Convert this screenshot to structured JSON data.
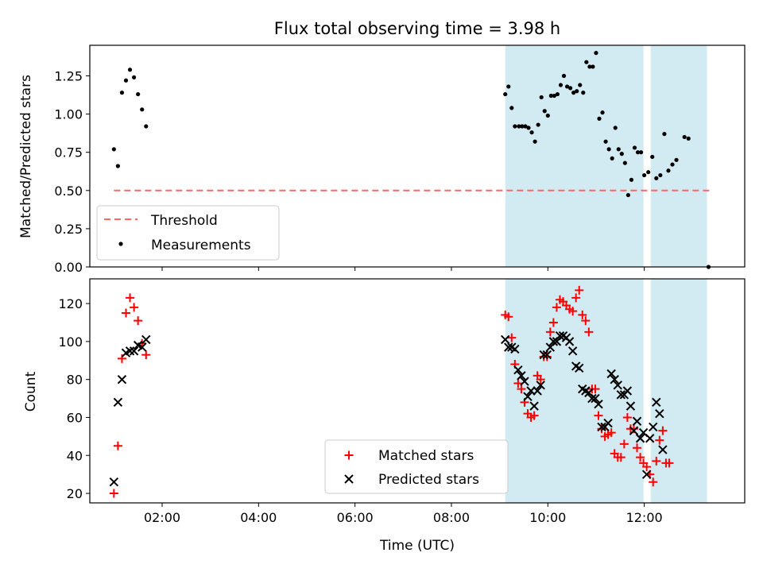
{
  "title": "Flux total observing time = 3.98 h",
  "xlabel": "Time (UTC)",
  "chart_data": [
    {
      "type": "scatter",
      "panel": "top",
      "ylabel": "Matched/Predicted stars",
      "xlim": [
        "00:30",
        "14:05"
      ],
      "ylim": [
        0,
        1.45
      ],
      "yticks": [
        0.0,
        0.25,
        0.5,
        0.75,
        1.0,
        1.25
      ],
      "ytick_labels": [
        "0.00",
        "0.25",
        "0.50",
        "0.75",
        "1.00",
        "1.25"
      ],
      "xticks": [
        "02:00",
        "04:00",
        "06:00",
        "08:00",
        "10:00",
        "12:00"
      ],
      "xtick_labels_shown": false,
      "legend_location": "lower-left",
      "shaded_intervals": [
        [
          "09:07",
          "11:59"
        ],
        [
          "12:08",
          "13:18"
        ]
      ],
      "shade_color": "#add8e6",
      "threshold": {
        "name": "Threshold",
        "value": 0.5,
        "x_range": [
          "01:00",
          "13:25"
        ],
        "color": "#ff6666",
        "style": "dashed"
      },
      "series": [
        {
          "name": "Measurements",
          "color": "#000000",
          "marker": "dot",
          "points": [
            [
              "01:00",
              0.77
            ],
            [
              "01:05",
              0.66
            ],
            [
              "01:10",
              1.14
            ],
            [
              "01:15",
              1.22
            ],
            [
              "01:20",
              1.29
            ],
            [
              "01:25",
              1.24
            ],
            [
              "01:30",
              1.13
            ],
            [
              "01:35",
              1.03
            ],
            [
              "01:40",
              0.92
            ],
            [
              "09:07",
              1.13
            ],
            [
              "09:11",
              1.18
            ],
            [
              "09:15",
              1.04
            ],
            [
              "09:19",
              0.92
            ],
            [
              "09:24",
              0.92
            ],
            [
              "09:28",
              0.92
            ],
            [
              "09:32",
              0.92
            ],
            [
              "09:36",
              0.91
            ],
            [
              "09:40",
              0.88
            ],
            [
              "09:44",
              0.82
            ],
            [
              "09:48",
              0.93
            ],
            [
              "09:52",
              1.11
            ],
            [
              "09:56",
              1.02
            ],
            [
              "10:00",
              0.99
            ],
            [
              "10:04",
              1.12
            ],
            [
              "10:08",
              1.12
            ],
            [
              "10:12",
              1.13
            ],
            [
              "10:16",
              1.19
            ],
            [
              "10:20",
              1.25
            ],
            [
              "10:24",
              1.18
            ],
            [
              "10:28",
              1.17
            ],
            [
              "10:32",
              1.14
            ],
            [
              "10:36",
              1.15
            ],
            [
              "10:40",
              1.19
            ],
            [
              "10:44",
              1.14
            ],
            [
              "10:48",
              1.34
            ],
            [
              "10:52",
              1.31
            ],
            [
              "10:56",
              1.31
            ],
            [
              "11:00",
              1.4
            ],
            [
              "11:04",
              0.97
            ],
            [
              "11:08",
              1.01
            ],
            [
              "11:12",
              0.82
            ],
            [
              "11:16",
              0.77
            ],
            [
              "11:20",
              0.71
            ],
            [
              "11:24",
              0.91
            ],
            [
              "11:28",
              0.77
            ],
            [
              "11:32",
              0.74
            ],
            [
              "11:36",
              0.68
            ],
            [
              "11:40",
              0.47
            ],
            [
              "11:44",
              0.57
            ],
            [
              "11:48",
              0.78
            ],
            [
              "11:52",
              0.75
            ],
            [
              "11:56",
              0.75
            ],
            [
              "12:00",
              0.6
            ],
            [
              "12:05",
              0.62
            ],
            [
              "12:10",
              0.72
            ],
            [
              "12:15",
              0.58
            ],
            [
              "12:20",
              0.6
            ],
            [
              "12:25",
              0.87
            ],
            [
              "12:30",
              0.63
            ],
            [
              "12:35",
              0.67
            ],
            [
              "12:40",
              0.7
            ],
            [
              "12:50",
              0.85
            ],
            [
              "12:55",
              0.84
            ],
            [
              "13:20",
              0.0
            ]
          ]
        }
      ]
    },
    {
      "type": "scatter",
      "panel": "bottom",
      "ylabel": "Count",
      "xlim": [
        "00:30",
        "14:05"
      ],
      "ylim": [
        15,
        133
      ],
      "yticks": [
        20,
        40,
        60,
        80,
        100,
        120
      ],
      "xticks": [
        "02:00",
        "04:00",
        "06:00",
        "08:00",
        "10:00",
        "12:00"
      ],
      "legend_location": "lower-center",
      "shaded_intervals": [
        [
          "09:07",
          "11:59"
        ],
        [
          "12:08",
          "13:18"
        ]
      ],
      "shade_color": "#add8e6",
      "series": [
        {
          "name": "Matched stars",
          "color": "#ff0000",
          "marker": "plus",
          "points": [
            [
              "01:00",
              20
            ],
            [
              "01:05",
              45
            ],
            [
              "01:10",
              91
            ],
            [
              "01:15",
              115
            ],
            [
              "01:20",
              123
            ],
            [
              "01:25",
              118
            ],
            [
              "01:30",
              111
            ],
            [
              "01:35",
              99
            ],
            [
              "01:40",
              93
            ],
            [
              "09:07",
              114
            ],
            [
              "09:11",
              113
            ],
            [
              "09:15",
              102
            ],
            [
              "09:19",
              88
            ],
            [
              "09:23",
              78
            ],
            [
              "09:27",
              75
            ],
            [
              "09:31",
              68
            ],
            [
              "09:35",
              62
            ],
            [
              "09:39",
              60
            ],
            [
              "09:43",
              61
            ],
            [
              "09:47",
              82
            ],
            [
              "09:51",
              80
            ],
            [
              "09:55",
              92
            ],
            [
              "09:59",
              92
            ],
            [
              "10:03",
              105
            ],
            [
              "10:07",
              110
            ],
            [
              "10:11",
              118
            ],
            [
              "10:15",
              122
            ],
            [
              "10:19",
              121
            ],
            [
              "10:23",
              119
            ],
            [
              "10:27",
              117
            ],
            [
              "10:31",
              116
            ],
            [
              "10:35",
              123
            ],
            [
              "10:39",
              127
            ],
            [
              "10:43",
              114
            ],
            [
              "10:47",
              111
            ],
            [
              "10:51",
              105
            ],
            [
              "10:55",
              75
            ],
            [
              "10:59",
              75
            ],
            [
              "11:03",
              61
            ],
            [
              "11:07",
              54
            ],
            [
              "11:11",
              50
            ],
            [
              "11:15",
              51
            ],
            [
              "11:19",
              52
            ],
            [
              "11:23",
              41
            ],
            [
              "11:27",
              39
            ],
            [
              "11:31",
              39
            ],
            [
              "11:35",
              46
            ],
            [
              "11:39",
              60
            ],
            [
              "11:43",
              54
            ],
            [
              "11:47",
              54
            ],
            [
              "11:51",
              44
            ],
            [
              "11:55",
              39
            ],
            [
              "11:59",
              36
            ],
            [
              "12:03",
              34
            ],
            [
              "12:07",
              30
            ],
            [
              "12:11",
              26
            ],
            [
              "12:15",
              37
            ],
            [
              "12:19",
              48
            ],
            [
              "12:23",
              53
            ],
            [
              "12:27",
              36
            ],
            [
              "12:31",
              36
            ]
          ]
        },
        {
          "name": "Predicted stars",
          "color": "#000000",
          "marker": "x",
          "points": [
            [
              "01:00",
              26
            ],
            [
              "01:05",
              68
            ],
            [
              "01:10",
              80
            ],
            [
              "01:15",
              94
            ],
            [
              "01:20",
              95
            ],
            [
              "01:25",
              95
            ],
            [
              "01:30",
              98
            ],
            [
              "01:35",
              97
            ],
            [
              "01:40",
              101
            ],
            [
              "09:07",
              101
            ],
            [
              "09:11",
              97
            ],
            [
              "09:15",
              97
            ],
            [
              "09:19",
              96
            ],
            [
              "09:23",
              85
            ],
            [
              "09:27",
              82
            ],
            [
              "09:31",
              79
            ],
            [
              "09:35",
              71
            ],
            [
              "09:39",
              74
            ],
            [
              "09:43",
              66
            ],
            [
              "09:47",
              74
            ],
            [
              "09:51",
              77
            ],
            [
              "09:55",
              93
            ],
            [
              "09:59",
              93
            ],
            [
              "10:03",
              97
            ],
            [
              "10:07",
              100
            ],
            [
              "10:11",
              100
            ],
            [
              "10:15",
              103
            ],
            [
              "10:19",
              103
            ],
            [
              "10:23",
              102
            ],
            [
              "10:27",
              100
            ],
            [
              "10:31",
              95
            ],
            [
              "10:35",
              87
            ],
            [
              "10:39",
              86
            ],
            [
              "10:43",
              75
            ],
            [
              "10:47",
              74
            ],
            [
              "10:51",
              73
            ],
            [
              "10:55",
              70
            ],
            [
              "10:59",
              70
            ],
            [
              "11:03",
              67
            ],
            [
              "11:07",
              55
            ],
            [
              "11:11",
              55
            ],
            [
              "11:15",
              57
            ],
            [
              "11:19",
              83
            ],
            [
              "11:23",
              80
            ],
            [
              "11:27",
              77
            ],
            [
              "11:31",
              72
            ],
            [
              "11:35",
              72
            ],
            [
              "11:39",
              74
            ],
            [
              "11:43",
              66
            ],
            [
              "11:47",
              53
            ],
            [
              "11:51",
              58
            ],
            [
              "11:55",
              49
            ],
            [
              "11:59",
              52
            ],
            [
              "12:03",
              30
            ],
            [
              "12:07",
              49
            ],
            [
              "12:11",
              55
            ],
            [
              "12:15",
              68
            ],
            [
              "12:19",
              62
            ],
            [
              "12:23",
              43
            ]
          ]
        }
      ]
    }
  ]
}
